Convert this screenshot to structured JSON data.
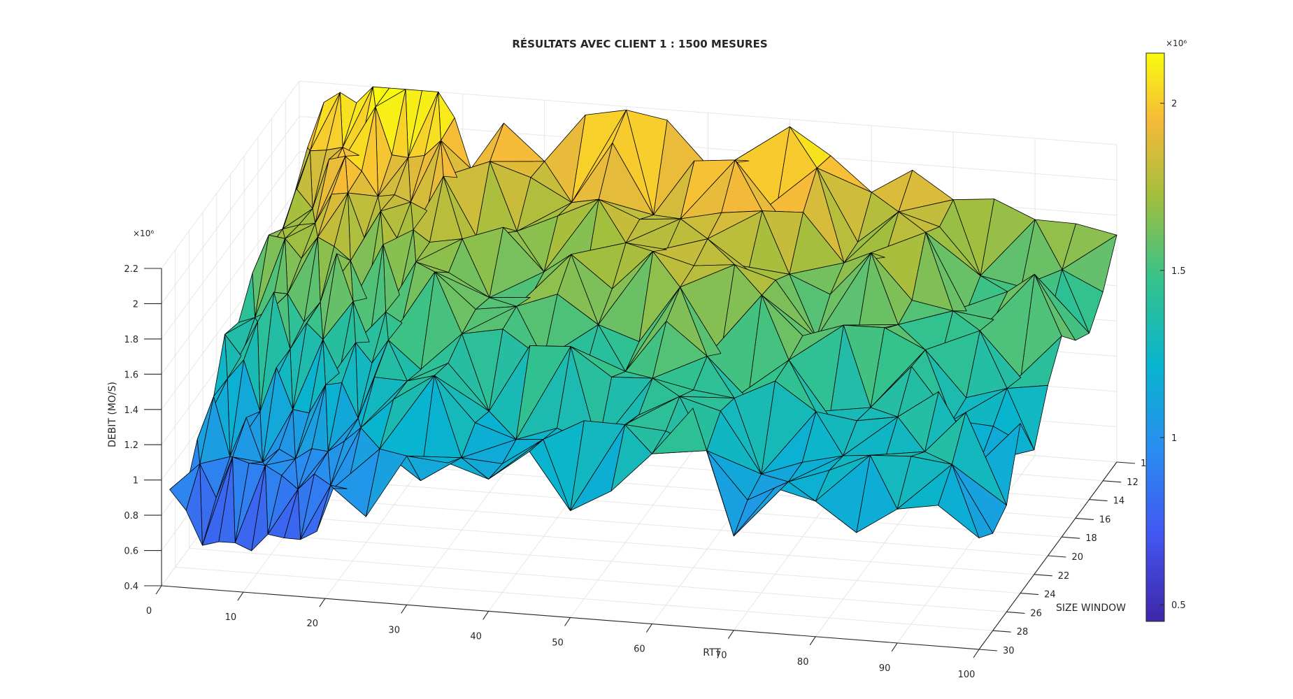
{
  "chart_data": {
    "type": "surface3d",
    "title": "RÉSULTATS AVEC CLIENT 1 : 1500 MESURES",
    "xlabel": "RTT",
    "ylabel": "SIZE WINDOW",
    "zlabel": "DEBIT (MO/S)",
    "xlim": [
      0,
      100
    ],
    "ylim": [
      10,
      30
    ],
    "zlim": [
      0.4,
      2.2
    ],
    "x_ticks": [
      "0",
      "10",
      "20",
      "30",
      "40",
      "50",
      "60",
      "70",
      "80",
      "90",
      "100"
    ],
    "y_ticks": [
      "10",
      "12",
      "14",
      "16",
      "18",
      "20",
      "22",
      "24",
      "26",
      "28",
      "30"
    ],
    "z_ticks": [
      "0.4",
      "0.6",
      "0.8",
      "1",
      "1.2",
      "1.4",
      "1.6",
      "1.8",
      "2",
      "2.2"
    ],
    "z_multiplier": "×10⁶",
    "grid": true,
    "colormap": "parula",
    "colorbar": {
      "ticks": [
        "0.5",
        "1",
        "1.5",
        "2"
      ],
      "multiplier": "×10⁶",
      "range": [
        0.45,
        2.15
      ]
    },
    "rtt_samples": [
      1,
      3,
      5,
      7,
      9,
      11,
      13,
      15,
      17,
      19,
      21,
      25,
      30,
      35,
      40,
      45,
      50,
      55,
      60,
      65,
      70,
      75,
      80,
      85,
      90,
      95,
      100
    ],
    "window_samples": [
      10,
      12,
      14,
      16,
      18,
      20,
      22,
      24,
      26,
      28,
      30
    ],
    "debit_profile": [
      {
        "rtt": 1,
        "near": 0.8,
        "far": 1.78
      },
      {
        "rtt": 3,
        "near": 0.9,
        "far": 2.05
      },
      {
        "rtt": 5,
        "near": 0.75,
        "far": 2.1
      },
      {
        "rtt": 7,
        "near": 0.72,
        "far": 2.2
      },
      {
        "rtt": 9,
        "near": 0.72,
        "far": 2.2
      },
      {
        "rtt": 11,
        "near": 0.72,
        "far": 2.18
      },
      {
        "rtt": 13,
        "near": 0.7,
        "far": 2.15
      },
      {
        "rtt": 15,
        "near": 0.75,
        "far": 2.05
      },
      {
        "rtt": 17,
        "near": 0.75,
        "far": 1.95
      },
      {
        "rtt": 20,
        "near": 0.9,
        "far": 1.95
      },
      {
        "rtt": 25,
        "near": 1.05,
        "far": 1.95
      },
      {
        "rtt": 30,
        "near": 1.1,
        "far": 1.95
      },
      {
        "rtt": 40,
        "near": 1.15,
        "far": 1.95
      },
      {
        "rtt": 50,
        "near": 1.15,
        "far": 2.05
      },
      {
        "rtt": 60,
        "near": 1.15,
        "far": 1.95
      },
      {
        "rtt": 70,
        "near": 1.1,
        "far": 1.85
      },
      {
        "rtt": 80,
        "near": 1.1,
        "far": 1.8
      },
      {
        "rtt": 90,
        "near": 1.1,
        "far": 1.7
      },
      {
        "rtt": 100,
        "near": 1.1,
        "far": 1.6
      }
    ]
  }
}
